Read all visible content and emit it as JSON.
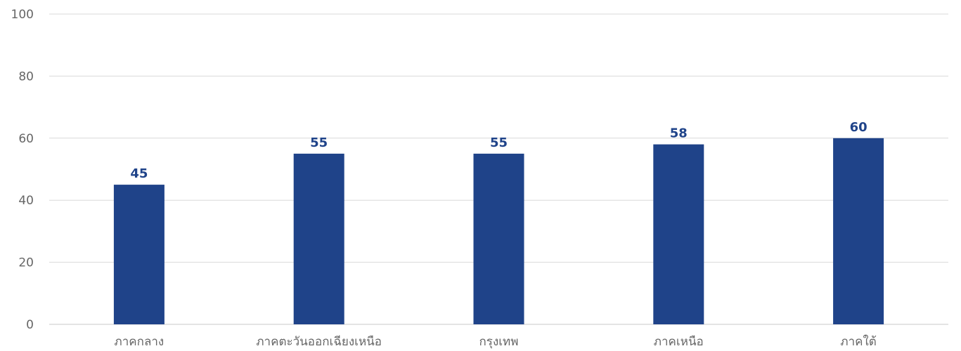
{
  "chart_data": {
    "type": "bar",
    "title": "",
    "xlabel": "",
    "ylabel": "",
    "categories": [
      "ภาคกลาง",
      "ภาคตะวันออกเฉียงเหนือ",
      "กรุงเทพ",
      "ภาคเหนือ",
      "ภาคใต้"
    ],
    "values": [
      45,
      55,
      55,
      58,
      60
    ],
    "value_labels": [
      "45",
      "55",
      "55",
      "58",
      "60"
    ],
    "ylim": [
      0,
      100
    ],
    "y_ticks": [
      0,
      20,
      40,
      60,
      80,
      100
    ],
    "y_tick_labels": [
      "0",
      "20",
      "40",
      "60",
      "80",
      "100"
    ],
    "grid": true,
    "legend": "none",
    "colors": {
      "bar": "#1f4389",
      "data_label": "#1f4389",
      "grid": "#d9d9d9",
      "tick_text": "#666666"
    }
  }
}
